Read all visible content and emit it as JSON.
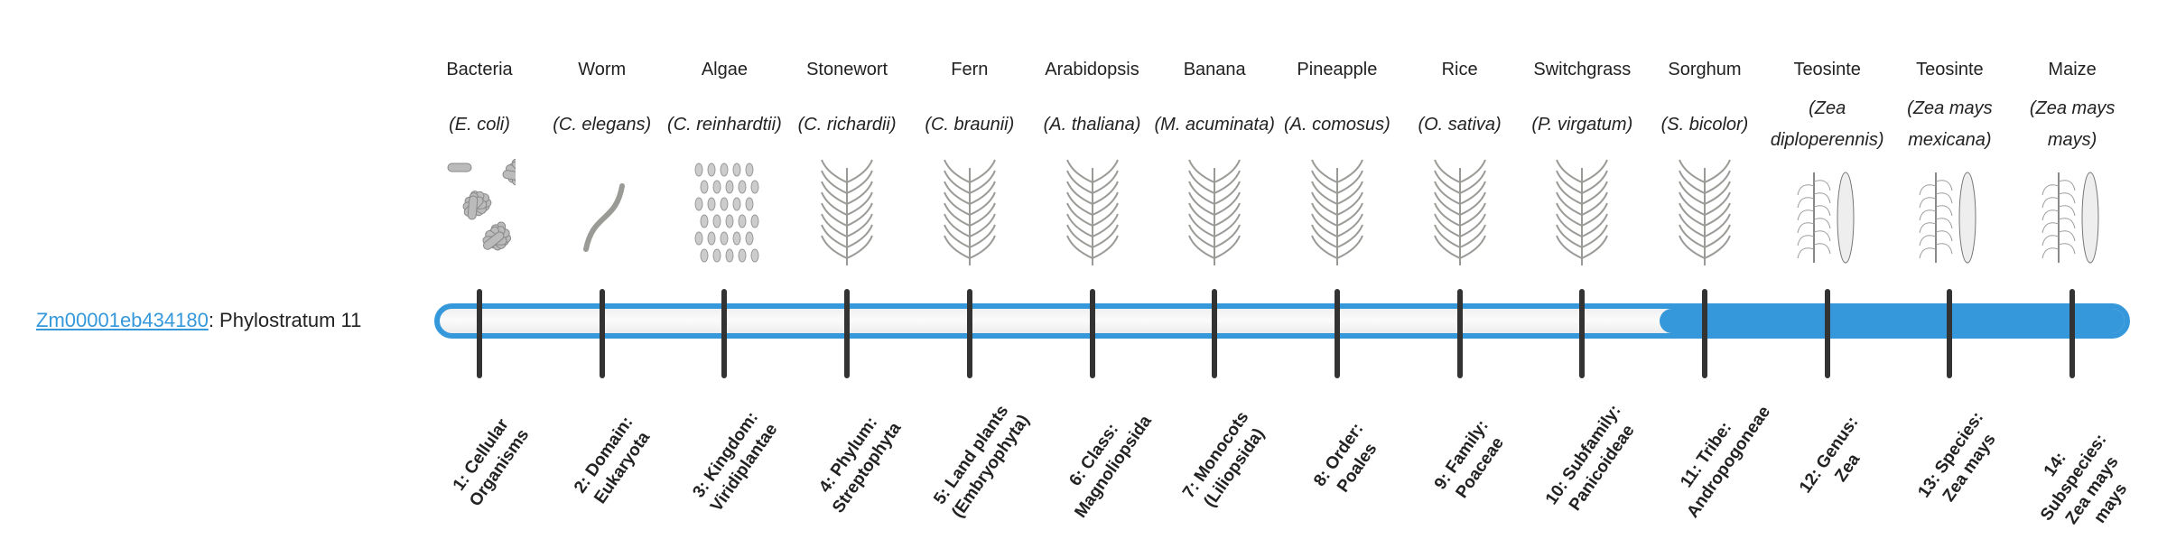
{
  "gene": {
    "id": "Zm00001eb434180",
    "suffix": ": Phylostratum 11"
  },
  "colors": {
    "accent": "#3598db",
    "tick": "#333333"
  },
  "progress": {
    "phylostratum": 11,
    "total": 14
  },
  "strata": [
    {
      "name": "Bacteria",
      "species": "(E. coli)",
      "icon": "bacteria-illustration",
      "label": "1: Cellular Organisms"
    },
    {
      "name": "Worm",
      "species": "(C. elegans)",
      "icon": "worm-illustration",
      "label": "2: Domain: Eukaryota"
    },
    {
      "name": "Algae",
      "species": "(C. reinhardtii)",
      "icon": "algae-illustration",
      "label": "3: Kingdom: Viridiplantae"
    },
    {
      "name": "Stonewort",
      "species": "(C. richardii)",
      "icon": "stonewort-illustration",
      "label": "4: Phylum: Streptophyta"
    },
    {
      "name": "Fern",
      "species": "(C. braunii)",
      "icon": "fern-illustration",
      "label": "5: Land plants (Embryophyta)"
    },
    {
      "name": "Arabidopsis",
      "species": "(A. thaliana)",
      "icon": "arabidopsis-illustration",
      "label": "6: Class: Magnoliopsida"
    },
    {
      "name": "Banana",
      "species": "(M. acuminata)",
      "icon": "banana-illustration",
      "label": "7: Monocots (Liliopsida)"
    },
    {
      "name": "Pineapple",
      "species": "(A. comosus)",
      "icon": "pineapple-illustration",
      "label": "8: Order: Poales"
    },
    {
      "name": "Rice",
      "species": "(O. sativa)",
      "icon": "rice-illustration",
      "label": "9: Family: Poaceae"
    },
    {
      "name": "Switchgrass",
      "species": "(P. virgatum)",
      "icon": "switchgrass-illustration",
      "label": "10: Subfamily: Panicoideae"
    },
    {
      "name": "Sorghum",
      "species": "(S. bicolor)",
      "icon": "sorghum-illustration",
      "label": "11: Tribe: Andropogoneae"
    },
    {
      "name": "Teosinte",
      "species": "(Zea diploperennis)",
      "icon": "teosinte-illustration",
      "label": "12: Genus: Zea"
    },
    {
      "name": "Teosinte",
      "species": "(Zea mays mexicana)",
      "icon": "teosinte-illustration",
      "label": "13: Species: Zea mays"
    },
    {
      "name": "Maize",
      "species": "(Zea mays mays)",
      "icon": "maize-illustration",
      "label": "14: Subspecies: Zea mays mays"
    }
  ]
}
